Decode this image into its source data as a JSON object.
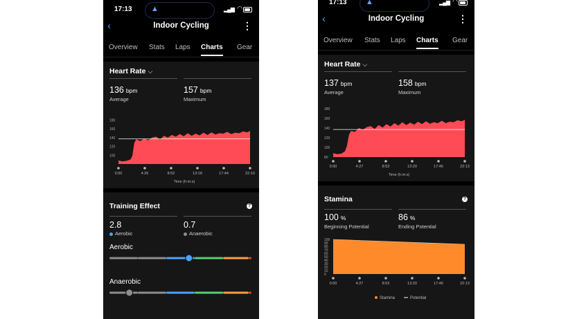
{
  "left": {
    "status": {
      "time": "17:13"
    },
    "header": {
      "title": "Indoor Cycling"
    },
    "tabs": [
      "Overview",
      "Stats",
      "Laps",
      "Charts",
      "Gear"
    ],
    "active_tab": "Charts",
    "heart_rate": {
      "title": "Heart Rate",
      "average": {
        "value": "136",
        "unit": "bpm",
        "label": "Average"
      },
      "maximum": {
        "value": "157",
        "unit": "bpm",
        "label": "Maximum"
      },
      "chart_data": {
        "type": "area",
        "title": "Heart Rate",
        "xlabel": "Time (h:m:s)",
        "ylabel": "",
        "x_tick_labels": [
          "0:00",
          "4:26",
          "8:52",
          "13:18",
          "17:44",
          "22:10"
        ],
        "y_tick_labels": [
          "100",
          "120",
          "140",
          "160",
          "180"
        ],
        "ylim": [
          80,
          190
        ],
        "xlim": [
          0,
          1330
        ],
        "reference_line": 137,
        "color": "#ff4b55",
        "x": [
          0,
          40,
          80,
          120,
          140,
          160,
          180,
          220,
          260,
          300,
          340,
          380,
          420,
          460,
          500,
          540,
          580,
          620,
          660,
          700,
          740,
          780,
          820,
          860,
          900,
          940,
          980,
          1020,
          1060,
          1100,
          1140,
          1180,
          1220,
          1260,
          1300,
          1330
        ],
        "y": [
          88,
          86,
          87,
          90,
          98,
          128,
          136,
          132,
          138,
          134,
          140,
          142,
          136,
          144,
          140,
          146,
          142,
          148,
          143,
          150,
          144,
          149,
          145,
          151,
          146,
          152,
          147,
          150,
          149,
          153,
          148,
          151,
          150,
          154,
          152,
          155
        ]
      }
    },
    "training_effect": {
      "title": "Training Effect",
      "aerobic": {
        "value": "2.8",
        "label": "Aerobic"
      },
      "anaerobic": {
        "value": "0.7",
        "label": "Anaerobic"
      },
      "scale_aerobic_label": "Aerobic",
      "scale_anaerobic_label": "Anaerobic",
      "aerobic_position": 2.8,
      "anaerobic_position": 0.7,
      "scale_max": 5,
      "colors": {
        "gray": "#8e8e8e",
        "blue": "#4aa3ff",
        "green": "#52d273",
        "orange": "#ff9e3d",
        "red": "#ff3b30"
      }
    }
  },
  "right": {
    "status": {
      "time": "17:13"
    },
    "header": {
      "title": "Indoor Cycling"
    },
    "tabs": [
      "Overview",
      "Stats",
      "Laps",
      "Charts",
      "Gear"
    ],
    "active_tab": "Charts",
    "heart_rate": {
      "title": "Heart Rate",
      "average": {
        "value": "137",
        "unit": "bpm",
        "label": "Average"
      },
      "maximum": {
        "value": "158",
        "unit": "bpm",
        "label": "Maximum"
      },
      "chart_data": {
        "type": "area",
        "title": "Heart Rate",
        "xlabel": "Time (h:m:s)",
        "ylabel": "",
        "x_tick_labels": [
          "0:00",
          "4:27",
          "8:53",
          "13:20",
          "17:46",
          "22:13"
        ],
        "y_tick_labels": [
          "80",
          "100",
          "120",
          "140",
          "160",
          "180"
        ],
        "ylim": [
          80,
          180
        ],
        "xlim": [
          0,
          1333
        ],
        "reference_line": 137,
        "color": "#ff4b55",
        "x": [
          0,
          40,
          80,
          120,
          140,
          160,
          180,
          220,
          260,
          300,
          340,
          380,
          420,
          460,
          500,
          540,
          580,
          620,
          660,
          700,
          740,
          780,
          820,
          860,
          900,
          940,
          980,
          1020,
          1060,
          1100,
          1140,
          1180,
          1220,
          1260,
          1300,
          1333
        ],
        "y": [
          88,
          86,
          87,
          92,
          104,
          126,
          134,
          132,
          140,
          136,
          142,
          144,
          138,
          146,
          141,
          148,
          143,
          150,
          145,
          152,
          146,
          151,
          147,
          153,
          148,
          154,
          149,
          152,
          150,
          155,
          150,
          153,
          152,
          156,
          154,
          157
        ]
      }
    },
    "stamina": {
      "title": "Stamina",
      "beginning": {
        "value": "100",
        "unit": "%",
        "label": "Beginning Potential"
      },
      "ending": {
        "value": "86",
        "unit": "%",
        "label": "Ending Potential"
      },
      "chart_data": {
        "type": "area",
        "title": "Stamina",
        "xlabel": "",
        "ylabel": "",
        "x_tick_labels": [
          "0:00",
          "4:27",
          "8:53",
          "13:20",
          "17:46",
          "22:13"
        ],
        "y_tick_labels": [
          "0",
          "10",
          "20",
          "30",
          "40",
          "50",
          "60",
          "70",
          "80",
          "90",
          "100"
        ],
        "ylim": [
          0,
          100
        ],
        "xlim": [
          0,
          1333
        ],
        "series": [
          {
            "name": "Stamina",
            "color": "#ff8a2a",
            "x": [
              0,
              1333
            ],
            "y": [
              100,
              86
            ]
          },
          {
            "name": "Potential",
            "color": "#ffffff",
            "x": [
              0,
              1333
            ],
            "y": [
              100,
              86
            ]
          }
        ],
        "legend": [
          "Stamina",
          "Potential"
        ]
      }
    }
  }
}
